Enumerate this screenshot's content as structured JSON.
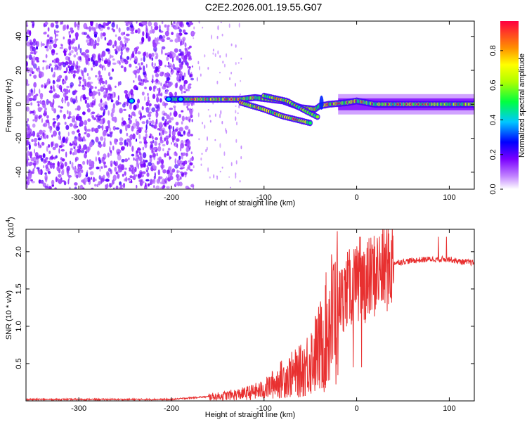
{
  "title": "C2E2.2026.001.19.55.G07",
  "chart_data": [
    {
      "type": "heatmap",
      "xlabel": "Height of straight line (km)",
      "ylabel": "Frequency (Hz)",
      "xlim": [
        -357,
        127
      ],
      "ylim": [
        -50,
        49
      ],
      "xticks": [
        -300,
        -200,
        -100,
        0,
        100
      ],
      "yticks": [
        -40,
        -20,
        0,
        20,
        40
      ],
      "colorbar": {
        "label": "Normalized spectral amplitude",
        "range": [
          0,
          0.97
        ],
        "ticks": [
          0.0,
          0.2,
          0.4,
          0.6,
          0.8
        ],
        "colors": [
          "#ffffff",
          "#a000ff",
          "#0000ff",
          "#00c0ff",
          "#00ff00",
          "#ffff00",
          "#ff8000",
          "#ff0000"
        ]
      },
      "features": {
        "noise_region_x": [
          -357,
          -177
        ],
        "main_track": [
          [
            -200,
            3
          ],
          [
            -160,
            3
          ],
          [
            -125,
            3
          ],
          [
            -110,
            4
          ],
          [
            -80,
            2
          ],
          [
            -60,
            -2
          ],
          [
            -45,
            -3
          ],
          [
            -40,
            -1
          ],
          [
            -30,
            0
          ],
          [
            -10,
            1
          ],
          [
            0,
            2
          ],
          [
            20,
            0
          ],
          [
            60,
            0
          ],
          [
            127,
            0
          ]
        ],
        "branch_track": [
          [
            -125,
            1
          ],
          [
            -100,
            -3
          ],
          [
            -80,
            -7
          ],
          [
            -50,
            -11
          ]
        ],
        "secondary_track": [
          [
            -100,
            5
          ],
          [
            -75,
            2
          ],
          [
            -55,
            -4
          ],
          [
            -40,
            -8
          ]
        ]
      }
    },
    {
      "type": "line",
      "xlabel": "Height of straight line (km)",
      "ylabel": "SNR (10 * v/v)",
      "scale_label": "(x10",
      "scale_exponent": "4",
      "xlim": [
        -357,
        127
      ],
      "ylim": [
        0,
        2.3
      ],
      "xticks": [
        -300,
        -200,
        -100,
        0,
        100
      ],
      "yticks": [
        0.5,
        1.0,
        1.5,
        2.0
      ],
      "color": "#e83030",
      "envelope": [
        [
          -357,
          0.02
        ],
        [
          -200,
          0.02
        ],
        [
          -170,
          0.05
        ],
        [
          -150,
          0.06
        ],
        [
          -120,
          0.1
        ],
        [
          -100,
          0.15
        ],
        [
          -80,
          0.3
        ],
        [
          -60,
          0.4
        ],
        [
          -40,
          0.7
        ],
        [
          -30,
          1.0
        ],
        [
          -20,
          1.3
        ],
        [
          -10,
          1.5
        ],
        [
          0,
          1.55
        ],
        [
          10,
          1.6
        ],
        [
          20,
          1.7
        ],
        [
          30,
          1.78
        ],
        [
          40,
          1.85
        ],
        [
          60,
          1.88
        ],
        [
          80,
          1.9
        ],
        [
          100,
          1.9
        ],
        [
          110,
          1.87
        ],
        [
          127,
          1.85
        ]
      ]
    }
  ]
}
